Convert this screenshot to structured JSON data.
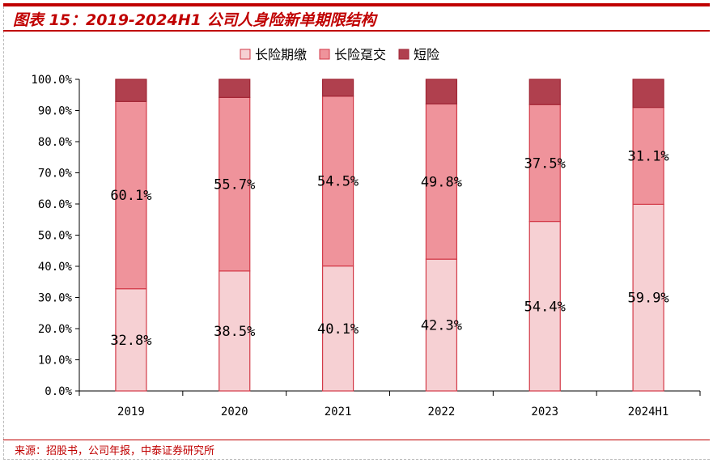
{
  "title": "图表 15：2019-2024H1 公司人身险新单期限结构",
  "source": "来源：招股书，公司年报，中泰证券研究所",
  "chart_data": {
    "type": "bar",
    "stacked": true,
    "categories": [
      "2019",
      "2020",
      "2021",
      "2022",
      "2023",
      "2024H1"
    ],
    "series": [
      {
        "name": "长险期缴",
        "values": [
          32.8,
          38.5,
          40.1,
          42.3,
          54.4,
          59.9
        ],
        "labels": [
          "32.8%",
          "38.5%",
          "40.1%",
          "42.3%",
          "54.4%",
          "59.9%"
        ],
        "color": "#f6d0d3"
      },
      {
        "name": "长险趸交",
        "values": [
          60.1,
          55.7,
          54.5,
          49.8,
          37.5,
          31.1
        ],
        "labels": [
          "60.1%",
          "55.7%",
          "54.5%",
          "49.8%",
          "37.5%",
          "31.1%"
        ],
        "color": "#ef939b"
      },
      {
        "name": "短险",
        "values": [
          7.1,
          5.8,
          5.4,
          7.9,
          8.1,
          9.0
        ],
        "color": "#b0404e"
      }
    ],
    "ylim": [
      0,
      100
    ],
    "yticks": [
      "0.0%",
      "10.0%",
      "20.0%",
      "30.0%",
      "40.0%",
      "50.0%",
      "60.0%",
      "70.0%",
      "80.0%",
      "90.0%",
      "100.0%"
    ],
    "legend": "top",
    "grid": false
  }
}
